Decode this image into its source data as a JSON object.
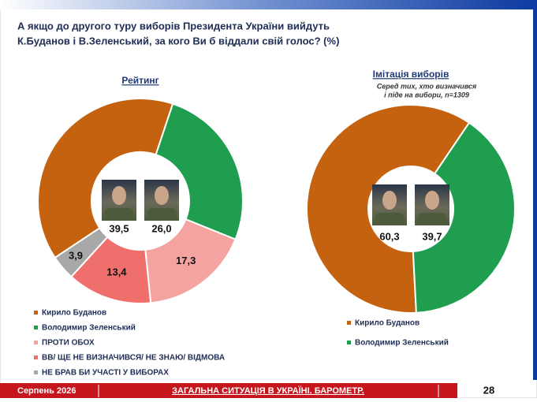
{
  "header": {
    "title": [
      "А якщо до другого туру виборів Президента України вийдуть",
      "К.Буданов і В.Зеленський, за кого Ви б віддали свій голос? (%)"
    ]
  },
  "chart_data": [
    {
      "type": "donut",
      "title": "Рейтинг",
      "categories": [
        "Кирило Буданов",
        "Володимир Зеленський",
        "ПРОТИ ОБОХ",
        "ВВ/ ЩЕ НЕ ВИЗНАЧИВСЯ/ НЕ ЗНАЮ/ ВІДМОВА",
        "НЕ БРАВ БИ УЧАСТІ У ВИБОРАХ"
      ],
      "values": [
        39.5,
        26.0,
        17.3,
        13.4,
        3.9
      ],
      "value_labels": [
        "39,5",
        "26,0",
        "17,3",
        "13,4",
        "3,9"
      ],
      "colors": [
        "#c5620f",
        "#1f9e4f",
        "#f4a3a0",
        "#ef6f6c",
        "#a8a8a8"
      ]
    },
    {
      "type": "donut",
      "title": "Імітація виборів",
      "subtitle": [
        "Серед тих, хто визначився",
        "і піде на вибори, n=1309"
      ],
      "categories": [
        "Кирило Буданов",
        "Володимир Зеленський"
      ],
      "values": [
        60.3,
        39.7
      ],
      "value_labels": [
        "60,3",
        "39,7"
      ],
      "colors": [
        "#c5620f",
        "#1f9e4f"
      ]
    }
  ],
  "footer": {
    "date": "Серпень 2026",
    "section": "ЗАГАЛЬНА СИТУАЦІЯ В УКРАЇНІ. БАРОМЕТР.",
    "page": "28"
  }
}
